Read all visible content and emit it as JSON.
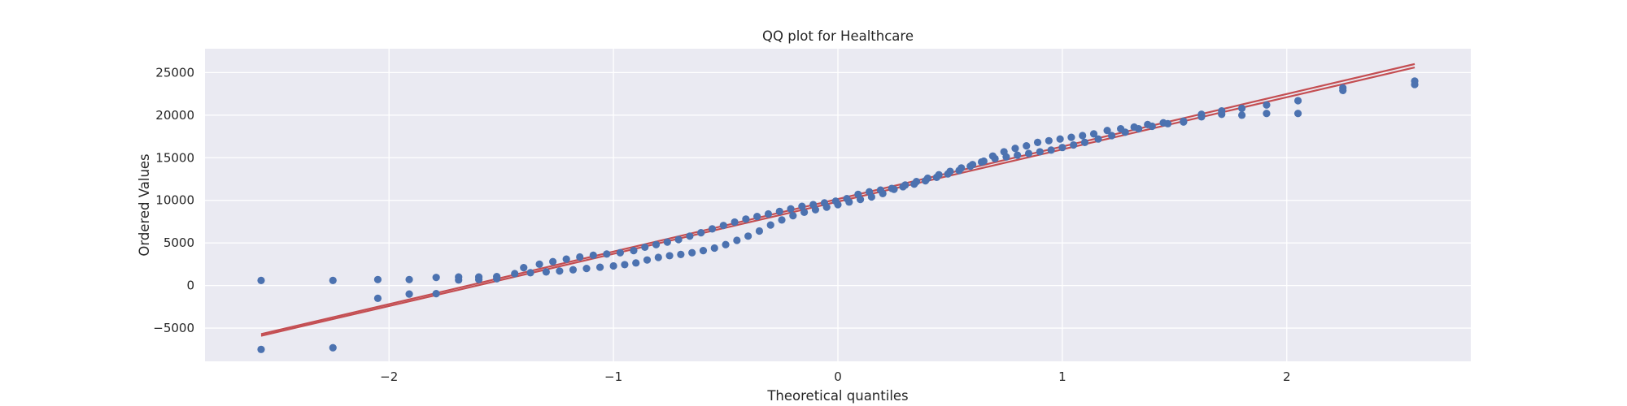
{
  "chart_data": {
    "type": "scatter",
    "title": "QQ plot for Healthcare",
    "xlabel": "Theoretical quantiles",
    "ylabel": "Ordered Values",
    "xlim": [
      -2.82,
      2.82
    ],
    "ylim": [
      -8900,
      27800
    ],
    "x_ticks": [
      -2,
      -1,
      0,
      1,
      2
    ],
    "x_tick_labels": [
      "−2",
      "−1",
      "0",
      "1",
      "2"
    ],
    "y_ticks": [
      -5000,
      0,
      5000,
      10000,
      15000,
      20000,
      25000
    ],
    "y_tick_labels": [
      "−5000",
      "0",
      "5000",
      "10000",
      "15000",
      "20000",
      "25000"
    ],
    "grid": true,
    "background": "#eaeaf2",
    "grid_color": "#ffffff",
    "marker_color": "#4c72b0",
    "line_color": "#c44e52",
    "series": [
      {
        "points": [
          [
            -2.57,
            -7500
          ],
          [
            -2.25,
            -7300
          ],
          [
            -2.05,
            -1500
          ],
          [
            -1.91,
            -1000
          ],
          [
            -1.79,
            -950
          ],
          [
            -2.57,
            600
          ],
          [
            -2.25,
            600
          ],
          [
            -2.05,
            700
          ],
          [
            -1.91,
            700
          ],
          [
            -1.79,
            950
          ],
          [
            -1.69,
            650
          ],
          [
            -1.69,
            1000
          ],
          [
            -1.6,
            700
          ],
          [
            -1.6,
            1000
          ],
          [
            -1.52,
            800
          ],
          [
            -1.52,
            1050
          ],
          [
            -1.44,
            1400
          ],
          [
            -1.37,
            1500
          ],
          [
            -1.3,
            1600
          ],
          [
            -1.24,
            1700
          ],
          [
            -1.18,
            1850
          ],
          [
            -1.12,
            2000
          ],
          [
            -1.06,
            2150
          ],
          [
            -1.0,
            2300
          ],
          [
            -0.95,
            2450
          ],
          [
            -0.9,
            2650
          ],
          [
            -0.85,
            3000
          ],
          [
            -0.8,
            3300
          ],
          [
            -0.75,
            3500
          ],
          [
            -0.7,
            3650
          ],
          [
            -0.65,
            3850
          ],
          [
            -0.6,
            4100
          ],
          [
            -0.55,
            4400
          ],
          [
            -0.5,
            4800
          ],
          [
            -0.45,
            5300
          ],
          [
            -0.4,
            5800
          ],
          [
            -0.35,
            6400
          ],
          [
            -0.3,
            7100
          ],
          [
            -0.25,
            7700
          ],
          [
            -0.2,
            8200
          ],
          [
            -0.15,
            8600
          ],
          [
            -0.1,
            8900
          ],
          [
            -0.05,
            9200
          ],
          [
            0.0,
            9500
          ],
          [
            0.05,
            9800
          ],
          [
            0.1,
            10100
          ],
          [
            0.15,
            10400
          ],
          [
            0.2,
            10800
          ],
          [
            0.25,
            11300
          ],
          [
            0.3,
            11800
          ],
          [
            -1.4,
            2100
          ],
          [
            -1.33,
            2500
          ],
          [
            -1.27,
            2800
          ],
          [
            -1.21,
            3100
          ],
          [
            -1.15,
            3350
          ],
          [
            -1.09,
            3550
          ],
          [
            -1.03,
            3700
          ],
          [
            -0.97,
            3850
          ],
          [
            -0.91,
            4100
          ],
          [
            -0.86,
            4500
          ],
          [
            -0.81,
            4800
          ],
          [
            -0.76,
            5100
          ],
          [
            -0.71,
            5400
          ],
          [
            -0.66,
            5800
          ],
          [
            -0.61,
            6200
          ],
          [
            -0.56,
            6650
          ],
          [
            -0.51,
            7050
          ],
          [
            -0.46,
            7450
          ],
          [
            -0.41,
            7800
          ],
          [
            -0.36,
            8100
          ],
          [
            -0.31,
            8400
          ],
          [
            -0.26,
            8700
          ],
          [
            -0.21,
            9000
          ],
          [
            -0.16,
            9300
          ],
          [
            -0.11,
            9500
          ],
          [
            -0.06,
            9700
          ],
          [
            -0.01,
            9900
          ],
          [
            0.04,
            10200
          ],
          [
            0.09,
            10700
          ],
          [
            0.14,
            11000
          ],
          [
            0.19,
            11200
          ],
          [
            0.24,
            11400
          ],
          [
            0.29,
            11600
          ],
          [
            0.34,
            11900
          ],
          [
            0.39,
            12300
          ],
          [
            0.44,
            12700
          ],
          [
            0.49,
            13100
          ],
          [
            0.54,
            13500
          ],
          [
            0.59,
            14000
          ],
          [
            0.64,
            14500
          ],
          [
            0.69,
            15200
          ],
          [
            0.74,
            15700
          ],
          [
            0.79,
            16100
          ],
          [
            0.84,
            16400
          ],
          [
            0.89,
            16800
          ],
          [
            0.94,
            17000
          ],
          [
            0.99,
            17200
          ],
          [
            1.04,
            17400
          ],
          [
            1.09,
            17600
          ],
          [
            1.14,
            17800
          ],
          [
            0.35,
            12200
          ],
          [
            0.4,
            12600
          ],
          [
            0.45,
            13000
          ],
          [
            0.5,
            13400
          ],
          [
            0.55,
            13800
          ],
          [
            0.6,
            14200
          ],
          [
            0.65,
            14600
          ],
          [
            0.7,
            14900
          ],
          [
            0.75,
            15100
          ],
          [
            0.8,
            15300
          ],
          [
            0.85,
            15500
          ],
          [
            0.9,
            15700
          ],
          [
            0.95,
            15900
          ],
          [
            1.0,
            16200
          ],
          [
            1.05,
            16500
          ],
          [
            1.1,
            16800
          ],
          [
            1.16,
            17200
          ],
          [
            1.22,
            17600
          ],
          [
            1.28,
            18000
          ],
          [
            1.34,
            18400
          ],
          [
            1.4,
            18700
          ],
          [
            1.47,
            19000
          ],
          [
            1.54,
            19200
          ],
          [
            1.62,
            19800
          ],
          [
            1.71,
            20100
          ],
          [
            1.8,
            20000
          ],
          [
            1.91,
            20200
          ],
          [
            2.05,
            20200
          ],
          [
            2.25,
            22900
          ],
          [
            2.57,
            23600
          ],
          [
            1.2,
            18200
          ],
          [
            1.26,
            18400
          ],
          [
            1.32,
            18600
          ],
          [
            1.38,
            18900
          ],
          [
            1.45,
            19100
          ],
          [
            1.54,
            19300
          ],
          [
            1.62,
            20100
          ],
          [
            1.71,
            20500
          ],
          [
            1.8,
            20800
          ],
          [
            1.91,
            21200
          ],
          [
            2.05,
            21700
          ],
          [
            2.25,
            23200
          ],
          [
            2.57,
            24000
          ]
        ]
      }
    ],
    "fit_lines": [
      {
        "x": [
          -2.57,
          2.57
        ],
        "y": [
          -5900,
          25600
        ]
      },
      {
        "x": [
          -2.57,
          2.57
        ],
        "y": [
          -5700,
          26000
        ]
      }
    ]
  }
}
